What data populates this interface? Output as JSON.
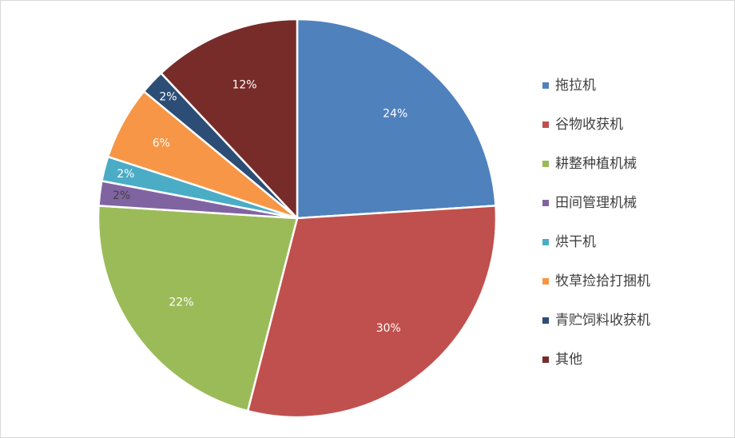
{
  "chart_data": {
    "type": "pie",
    "categories": [
      "拖拉机",
      "谷物收获机",
      "耕整种植机械",
      "田间管理机械",
      "烘干机",
      "牧草捡拾打捆机",
      "青贮饲料收获机",
      "其他"
    ],
    "values": [
      24,
      30,
      22,
      2,
      2,
      6,
      2,
      12
    ],
    "labels": [
      "24%",
      "30%",
      "22%",
      "2%",
      "2%",
      "6%",
      "2%",
      "12%"
    ],
    "colors": [
      "#4f81bd",
      "#c0504d",
      "#9bbb59",
      "#8064a2",
      "#4bacc6",
      "#f79646",
      "#2c4d75",
      "#772c2a"
    ],
    "label_colors": [
      "#ffffff",
      "#ffffff",
      "#ffffff",
      "#404040",
      "#ffffff",
      "#ffffff",
      "#ffffff",
      "#ffffff"
    ],
    "start_angle_deg": 0,
    "direction": "clockwise",
    "legend_position": "right"
  }
}
